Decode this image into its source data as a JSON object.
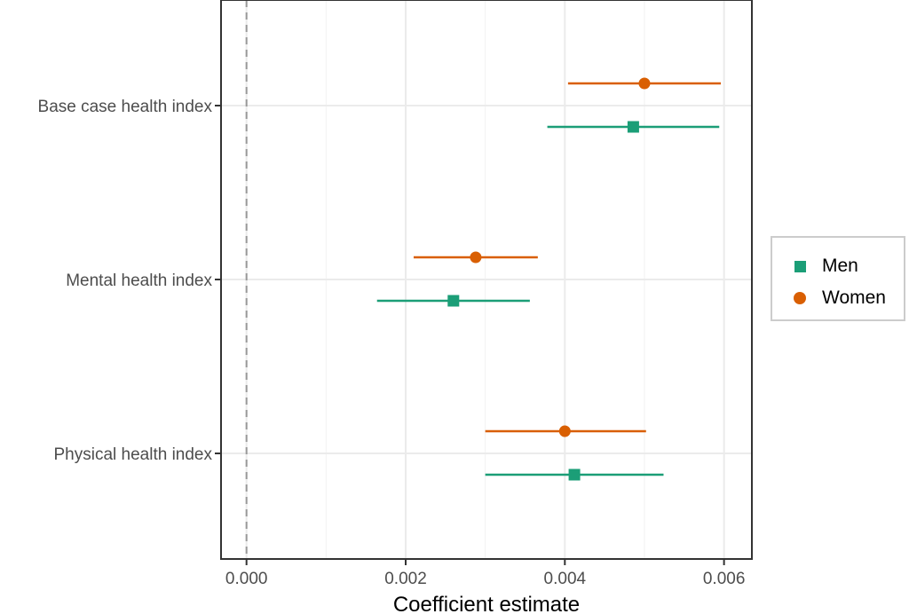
{
  "chart_data": {
    "type": "scatter",
    "subtype": "coefficient-plot-with-error-bars",
    "xlabel": "Coefficient estimate",
    "ylabel": "",
    "xlim": [
      -0.00032,
      0.00635
    ],
    "x_ticks": [
      0.0,
      0.002,
      0.004,
      0.006
    ],
    "x_tick_labels": [
      "0.000",
      "0.002",
      "0.004",
      "0.006"
    ],
    "reference_line": {
      "x": 0.0,
      "style": "dashed",
      "color": "#999999"
    },
    "categories": [
      "Base case health index",
      "Mental health index",
      "Physical health index"
    ],
    "series": [
      {
        "name": "Men",
        "marker": "square",
        "color": "#1b9e77",
        "estimates": [
          0.00486,
          0.0026,
          0.00412
        ],
        "ci_low": [
          0.00378,
          0.00164,
          0.003
        ],
        "ci_high": [
          0.00594,
          0.00356,
          0.00524
        ]
      },
      {
        "name": "Women",
        "marker": "circle",
        "color": "#d95f02",
        "estimates": [
          0.005,
          0.00288,
          0.004
        ],
        "ci_low": [
          0.00404,
          0.0021,
          0.003
        ],
        "ci_high": [
          0.00596,
          0.00366,
          0.00502
        ]
      }
    ],
    "grid": true,
    "legend_position": "right"
  },
  "legend": {
    "items": [
      {
        "label": "Men",
        "marker": "square",
        "color": "#1b9e77"
      },
      {
        "label": "Women",
        "marker": "circle",
        "color": "#d95f02"
      }
    ]
  }
}
